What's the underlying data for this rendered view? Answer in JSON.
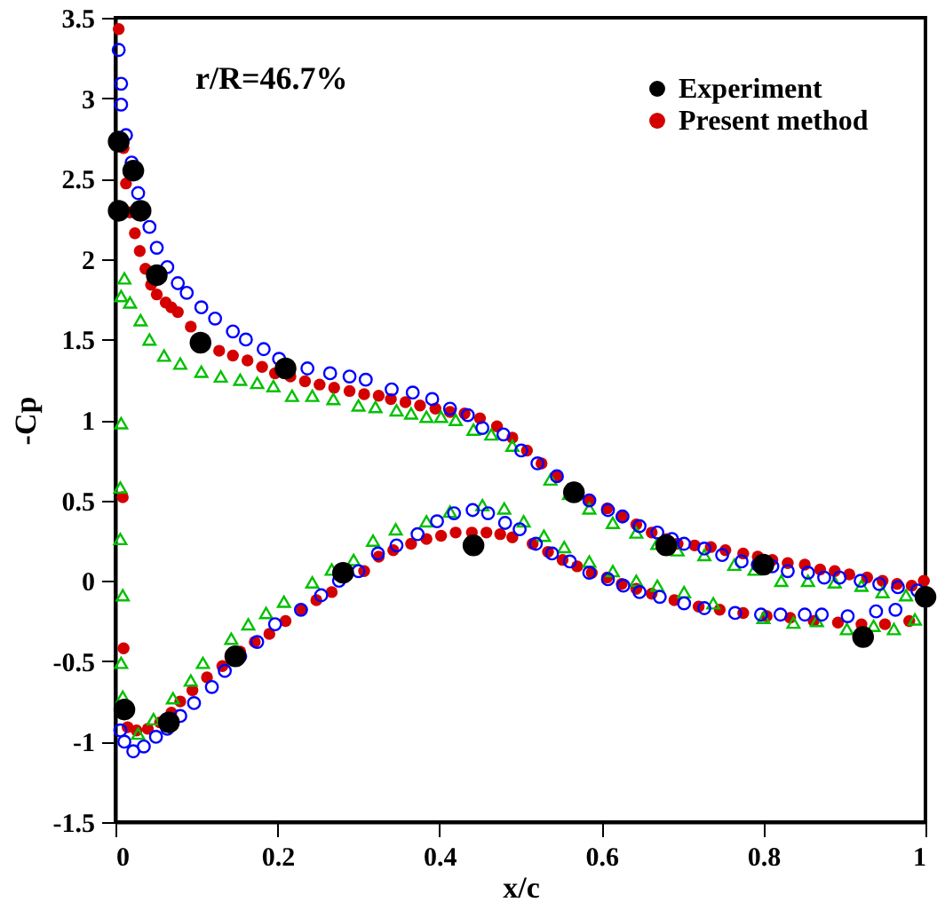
{
  "chart_data": {
    "type": "scatter",
    "xlabel": "x/c",
    "ylabel": "-Cp",
    "annotations": [
      "r/R=46.7%"
    ],
    "xlim": [
      0,
      1
    ],
    "ylim": [
      -1.5,
      3.5
    ],
    "xticks": [
      0,
      0.2,
      0.4,
      0.6,
      0.8,
      1
    ],
    "yticks": [
      -1.5,
      -1,
      -0.5,
      0,
      0.5,
      1,
      1.5,
      2,
      2.5,
      3,
      3.5
    ],
    "grid": false,
    "legend": "top right",
    "series": [
      {
        "name": "Experiment",
        "color": "#000000",
        "marker": "circle",
        "x": [
          0.004,
          0.004,
          0.022,
          0.031,
          0.051,
          0.105,
          0.21,
          0.442,
          0.566,
          0.68,
          0.8,
          0.923,
          1.0,
          0.011,
          0.066,
          0.148,
          0.281
        ],
        "values": [
          2.73,
          2.3,
          2.55,
          2.3,
          1.9,
          1.48,
          1.32,
          0.22,
          0.55,
          0.22,
          0.1,
          -0.35,
          -0.1,
          -0.8,
          -0.88,
          -0.47,
          0.05
        ]
      },
      {
        "name": "Present method",
        "color": "#d40000",
        "marker": "circle",
        "x": [
          0.004,
          0.01,
          0.013,
          0.018,
          0.024,
          0.03,
          0.037,
          0.044,
          0.051,
          0.062,
          0.069,
          0.077,
          0.093,
          0.11,
          0.128,
          0.145,
          0.163,
          0.181,
          0.197,
          0.216,
          0.234,
          0.252,
          0.27,
          0.289,
          0.307,
          0.325,
          0.34,
          0.358,
          0.376,
          0.395,
          0.413,
          0.431,
          0.45,
          0.471,
          0.49,
          0.508,
          0.526,
          0.545,
          0.566,
          0.585,
          0.607,
          0.625,
          0.643,
          0.662,
          0.68,
          0.694,
          0.715,
          0.735,
          0.753,
          0.775,
          0.793,
          0.811,
          0.83,
          0.851,
          0.87,
          0.888,
          0.906,
          0.928,
          0.947,
          0.965,
          0.983,
          0.998,
          0.009,
          0.01,
          0.015,
          0.026,
          0.04,
          0.055,
          0.069,
          0.08,
          0.095,
          0.113,
          0.132,
          0.154,
          0.172,
          0.19,
          0.21,
          0.23,
          0.248,
          0.267,
          0.285,
          0.307,
          0.325,
          0.343,
          0.365,
          0.384,
          0.402,
          0.42,
          0.44,
          0.458,
          0.475,
          0.49,
          0.515,
          0.534,
          0.552,
          0.57,
          0.588,
          0.607,
          0.625,
          0.643,
          0.662,
          0.69,
          0.72,
          0.746,
          0.775,
          0.804,
          0.833,
          0.862,
          0.892,
          0.921,
          0.95,
          0.98
        ],
        "values": [
          3.43,
          2.69,
          2.47,
          2.29,
          2.16,
          2.05,
          1.94,
          1.84,
          1.78,
          1.73,
          1.7,
          1.67,
          1.58,
          null,
          1.43,
          1.4,
          1.37,
          1.33,
          1.29,
          1.27,
          1.24,
          1.22,
          1.2,
          1.18,
          1.16,
          1.15,
          1.13,
          1.11,
          1.09,
          1.07,
          1.05,
          1.04,
          1.01,
          0.96,
          0.89,
          0.81,
          0.73,
          0.65,
          null,
          0.5,
          0.45,
          0.4,
          0.35,
          0.3,
          0.26,
          0.23,
          0.22,
          0.21,
          0.19,
          0.17,
          0.15,
          0.13,
          0.11,
          0.1,
          0.07,
          0.06,
          0.04,
          0.02,
          0.0,
          -0.02,
          -0.03,
          0.0,
          0.52,
          -0.42,
          -0.91,
          -0.93,
          -0.92,
          -0.88,
          -0.82,
          -0.75,
          -0.68,
          -0.6,
          -0.53,
          -0.44,
          -0.38,
          -0.33,
          -0.25,
          -0.18,
          -0.12,
          -0.07,
          null,
          0.06,
          0.15,
          0.19,
          0.23,
          0.26,
          0.28,
          0.3,
          0.3,
          0.3,
          0.29,
          0.27,
          0.23,
          0.18,
          0.13,
          0.09,
          0.05,
          0.02,
          -0.02,
          -0.05,
          -0.08,
          -0.12,
          -0.16,
          -0.18,
          -0.2,
          -0.22,
          -0.23,
          -0.25,
          -0.26,
          -0.27,
          -0.27,
          -0.25
        ]
      },
      {
        "color": "#00c000",
        "marker": "triangle",
        "x": [
          0.011,
          0.007,
          0.018,
          0.031,
          0.042,
          0.06,
          0.08,
          0.106,
          0.13,
          0.154,
          0.175,
          0.195,
          0.218,
          0.243,
          0.269,
          0.3,
          0.321,
          0.347,
          0.365,
          0.384,
          0.402,
          0.42,
          0.442,
          0.464,
          0.49,
          0.537,
          0.56,
          0.585,
          0.614,
          0.643,
          0.669,
          0.694,
          0.727,
          0.764,
          0.789,
          0.822,
          0.855,
          0.888,
          0.921,
          0.947,
          0.976,
          0.007,
          0.006,
          0.006,
          0.009,
          0.007,
          0.009,
          0.028,
          0.047,
          0.071,
          0.093,
          0.108,
          0.143,
          0.164,
          0.186,
          0.208,
          0.243,
          0.267,
          0.294,
          0.318,
          0.346,
          0.384,
          0.413,
          0.453,
          0.48,
          0.504,
          0.529,
          0.554,
          0.585,
          0.614,
          0.643,
          0.669,
          0.702,
          0.738,
          0.8,
          0.837,
          0.866,
          0.903,
          0.936,
          0.961,
          0.987
        ],
        "values": [
          1.88,
          1.77,
          1.73,
          1.62,
          1.5,
          1.4,
          1.35,
          1.3,
          1.27,
          1.25,
          1.23,
          1.21,
          1.15,
          1.15,
          1.13,
          1.09,
          1.08,
          1.06,
          1.04,
          1.02,
          1.02,
          1.0,
          0.94,
          0.91,
          0.84,
          0.63,
          0.54,
          0.45,
          0.36,
          0.3,
          0.23,
          0.19,
          0.16,
          0.1,
          0.07,
          0.0,
          0.0,
          -0.01,
          -0.03,
          -0.07,
          -0.09,
          0.98,
          0.58,
          0.26,
          -0.09,
          -0.51,
          -0.72,
          -0.95,
          -0.86,
          -0.73,
          -0.62,
          -0.51,
          -0.36,
          -0.27,
          -0.2,
          -0.13,
          -0.01,
          0.07,
          0.13,
          0.25,
          0.32,
          0.37,
          0.43,
          0.47,
          0.45,
          0.37,
          0.28,
          0.21,
          0.12,
          0.06,
          0.0,
          -0.03,
          -0.07,
          -0.14,
          -0.23,
          -0.26,
          -0.25,
          -0.3,
          -0.28,
          -0.3,
          -0.24
        ]
      },
      {
        "color": "#0000ff",
        "marker": "circle",
        "x": [
          0.004,
          0.007,
          0.007,
          0.013,
          0.02,
          0.028,
          0.033,
          0.042,
          0.051,
          0.064,
          0.077,
          0.088,
          0.106,
          0.123,
          0.145,
          0.161,
          0.183,
          0.202,
          0.237,
          0.265,
          0.289,
          0.309,
          0.341,
          0.367,
          0.391,
          0.413,
          0.435,
          0.453,
          0.479,
          0.501,
          0.521,
          0.545,
          0.565,
          0.585,
          0.608,
          0.626,
          0.647,
          0.669,
          0.687,
          0.702,
          0.727,
          0.749,
          0.773,
          0.793,
          0.811,
          0.83,
          0.855,
          0.875,
          0.894,
          0.92,
          0.943,
          0.966,
          0.99,
          0.006,
          0.011,
          0.022,
          0.035,
          0.05,
          0.064,
          0.08,
          0.097,
          0.119,
          0.135,
          0.154,
          0.175,
          0.197,
          0.229,
          0.254,
          0.276,
          0.3,
          0.324,
          0.347,
          0.373,
          0.397,
          0.418,
          0.441,
          0.46,
          0.481,
          0.499,
          0.519,
          0.539,
          0.561,
          0.585,
          0.608,
          0.627,
          0.647,
          0.672,
          0.702,
          0.727,
          0.765,
          0.797,
          0.821,
          0.851,
          0.872,
          0.904,
          0.939,
          0.963
        ],
        "values": [
          3.3,
          3.09,
          2.96,
          2.77,
          2.6,
          2.41,
          null,
          2.2,
          2.07,
          1.95,
          1.85,
          1.79,
          1.7,
          1.63,
          1.55,
          1.5,
          1.44,
          1.38,
          1.32,
          1.29,
          1.27,
          1.25,
          1.19,
          1.17,
          1.13,
          1.07,
          1.03,
          0.95,
          0.91,
          0.81,
          0.73,
          0.65,
          null,
          0.5,
          0.44,
          0.4,
          0.34,
          0.3,
          0.26,
          0.23,
          0.2,
          0.16,
          0.12,
          0.1,
          0.09,
          0.06,
          0.05,
          0.02,
          0.02,
          0.0,
          -0.02,
          -0.04,
          -0.06,
          -0.93,
          -1.0,
          -1.06,
          -1.03,
          -0.97,
          -0.92,
          -0.84,
          -0.76,
          -0.66,
          -0.56,
          -0.47,
          -0.38,
          -0.27,
          -0.18,
          -0.09,
          0.0,
          0.06,
          0.17,
          0.22,
          0.29,
          0.37,
          0.42,
          0.44,
          0.42,
          0.36,
          0.32,
          0.23,
          0.17,
          0.12,
          0.05,
          0.01,
          -0.03,
          -0.07,
          -0.1,
          -0.14,
          -0.17,
          -0.2,
          -0.21,
          -0.21,
          -0.21,
          -0.21,
          -0.22,
          -0.19,
          -0.18
        ]
      }
    ]
  }
}
